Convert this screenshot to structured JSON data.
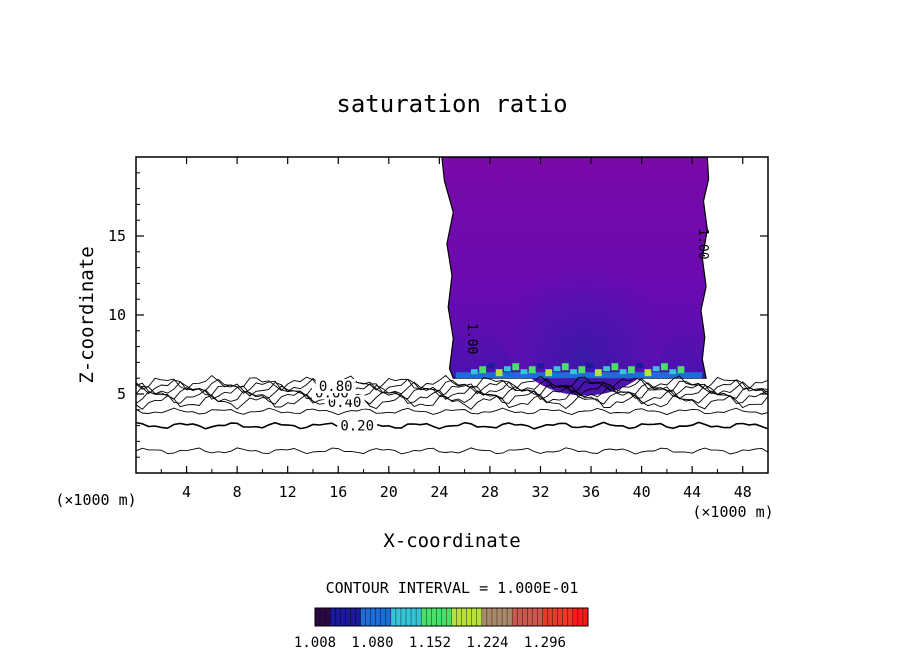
{
  "chart_data": {
    "type": "contour",
    "title": "saturation ratio",
    "xlabel": "X-coordinate",
    "ylabel": "Z-coordinate",
    "x_unit": "(×1000 m)",
    "xlim": [
      0,
      50
    ],
    "ylim": [
      0,
      20
    ],
    "x_ticks": [
      4,
      8,
      12,
      16,
      20,
      24,
      28,
      32,
      36,
      40,
      44,
      48
    ],
    "y_ticks": [
      5,
      10,
      15
    ],
    "contour_interval_text": "CONTOUR INTERVAL = 1.000E-01",
    "contour_lines": [
      {
        "level": 0.1,
        "z": 1.4
      },
      {
        "level": 0.2,
        "z": 3.0,
        "label": "0.20"
      },
      {
        "level": 0.3,
        "z": 3.9
      },
      {
        "level": 0.4,
        "z": 4.5,
        "label": "0.40"
      },
      {
        "level": 0.5,
        "z": 4.8
      },
      {
        "level": 0.6,
        "z": 5.1,
        "label": "0.60"
      },
      {
        "level": 0.7,
        "z": 5.3
      },
      {
        "level": 0.8,
        "z": 5.5,
        "label": "0.80"
      },
      {
        "level": 0.9,
        "z": 5.7
      }
    ],
    "cloud_region": {
      "level": 1.0,
      "label": "1.00",
      "x_range": [
        25,
        45
      ],
      "z_range": [
        6,
        20
      ]
    },
    "colorbar": {
      "min": 1.008,
      "max": 1.35,
      "tick_labels": [
        "1.008",
        "1.080",
        "1.152",
        "1.224",
        "1.296"
      ],
      "colors": [
        "#2a0a45",
        "#1a1a9a",
        "#1f6cd6",
        "#35c4d8",
        "#49e06a",
        "#b6e03a",
        "#a98a6a",
        "#c85a50",
        "#e83a2a",
        "#ff1a1a"
      ]
    }
  }
}
